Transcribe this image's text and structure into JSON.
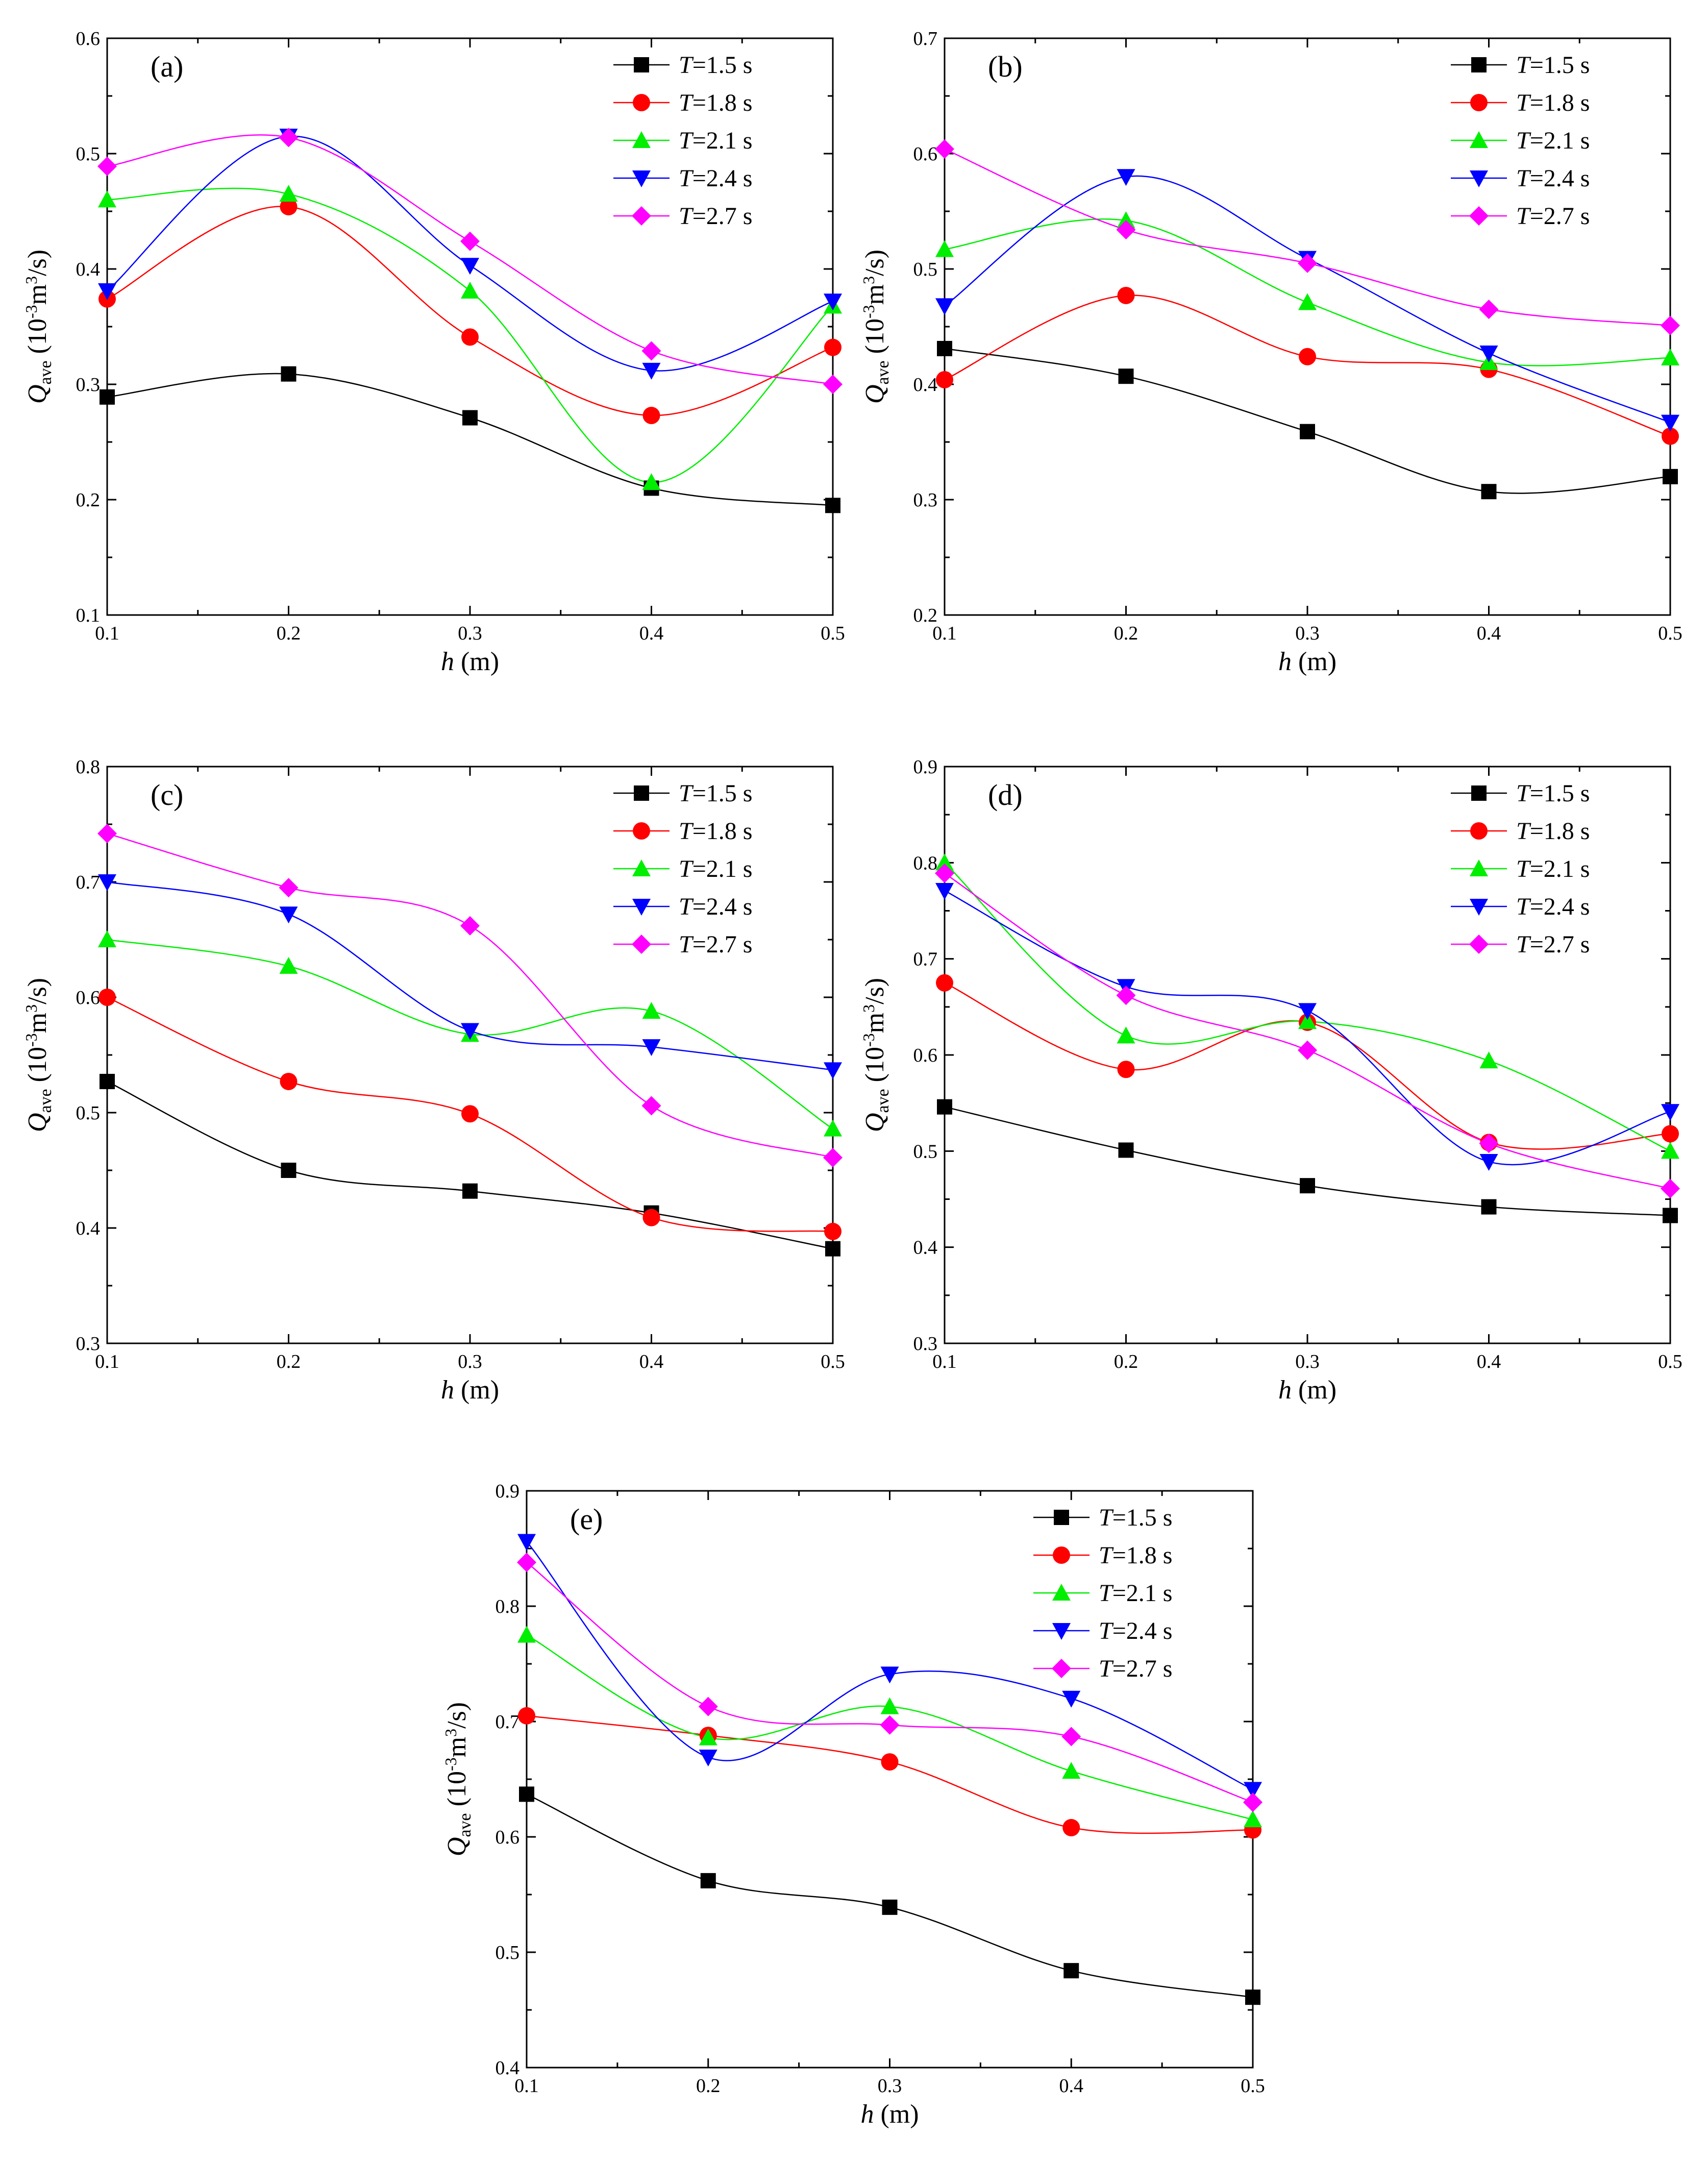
{
  "chart_data": [
    {
      "type": "line",
      "panel_label": "(a)",
      "xlabel": "h (m)",
      "xlabel_italic": "h",
      "xlabel_rest": " (m)",
      "ylabel_main": "Q",
      "ylabel_sub": "ave",
      "ylabel_rest": " (10",
      "ylabel_exp1": "-3",
      "ylabel_mid": "m",
      "ylabel_exp2": "3",
      "ylabel_end": "/s)",
      "x": [
        0.1,
        0.2,
        0.3,
        0.4,
        0.5
      ],
      "xticks": [
        "0.1",
        "0.2",
        "0.3",
        "0.4",
        "0.5"
      ],
      "ylim": [
        0.1,
        0.6
      ],
      "yticks": [
        "0.1",
        "0.2",
        "0.3",
        "0.4",
        "0.5",
        "0.6"
      ],
      "legend_position": "top-right",
      "series": [
        {
          "name": "T=1.5 s",
          "label_italic": "T",
          "label_rest": "=1.5 s",
          "color": "#000000",
          "marker": "square",
          "values": [
            0.289,
            0.309,
            0.271,
            0.21,
            0.195
          ]
        },
        {
          "name": "T=1.8 s",
          "label_italic": "T",
          "label_rest": "=1.8 s",
          "color": "#ff0000",
          "marker": "circle",
          "values": [
            0.374,
            0.454,
            0.341,
            0.273,
            0.332
          ]
        },
        {
          "name": "T=2.1 s",
          "label_italic": "T",
          "label_rest": "=2.1 s",
          "color": "#00ee00",
          "marker": "triangle-up",
          "values": [
            0.46,
            0.465,
            0.381,
            0.215,
            0.368
          ]
        },
        {
          "name": "T=2.4 s",
          "label_italic": "T",
          "label_rest": "=2.4 s",
          "color": "#0000ff",
          "marker": "triangle-down",
          "values": [
            0.381,
            0.515,
            0.403,
            0.312,
            0.372
          ]
        },
        {
          "name": "T=2.7 s",
          "label_italic": "T",
          "label_rest": "=2.7 s",
          "color": "#ff00ff",
          "marker": "diamond",
          "values": [
            0.489,
            0.514,
            0.424,
            0.329,
            0.3
          ]
        }
      ]
    },
    {
      "type": "line",
      "panel_label": "(b)",
      "xlabel": "h (m)",
      "xlabel_italic": "h",
      "xlabel_rest": " (m)",
      "ylabel_main": "Q",
      "ylabel_sub": "ave",
      "ylabel_rest": " (10",
      "ylabel_exp1": "-3",
      "ylabel_mid": "m",
      "ylabel_exp2": "3",
      "ylabel_end": "/s)",
      "x": [
        0.1,
        0.2,
        0.3,
        0.4,
        0.5
      ],
      "xticks": [
        "0.1",
        "0.2",
        "0.3",
        "0.4",
        "0.5"
      ],
      "ylim": [
        0.2,
        0.7
      ],
      "yticks": [
        "0.2",
        "0.3",
        "0.4",
        "0.5",
        "0.6",
        "0.7"
      ],
      "legend_position": "top-right",
      "series": [
        {
          "name": "T=1.5 s",
          "label_italic": "T",
          "label_rest": "=1.5 s",
          "color": "#000000",
          "marker": "square",
          "values": [
            0.431,
            0.407,
            0.359,
            0.307,
            0.32
          ]
        },
        {
          "name": "T=1.8 s",
          "label_italic": "T",
          "label_rest": "=1.8 s",
          "color": "#ff0000",
          "marker": "circle",
          "values": [
            0.404,
            0.477,
            0.424,
            0.413,
            0.355
          ]
        },
        {
          "name": "T=2.1 s",
          "label_italic": "T",
          "label_rest": "=2.1 s",
          "color": "#00ee00",
          "marker": "triangle-up",
          "values": [
            0.517,
            0.542,
            0.471,
            0.419,
            0.423
          ]
        },
        {
          "name": "T=2.4 s",
          "label_italic": "T",
          "label_rest": "=2.4 s",
          "color": "#0000ff",
          "marker": "triangle-down",
          "values": [
            0.468,
            0.58,
            0.509,
            0.427,
            0.367
          ]
        },
        {
          "name": "T=2.7 s",
          "label_italic": "T",
          "label_rest": "=2.7 s",
          "color": "#ff00ff",
          "marker": "diamond",
          "values": [
            0.604,
            0.534,
            0.505,
            0.465,
            0.451
          ]
        }
      ]
    },
    {
      "type": "line",
      "panel_label": "(c)",
      "xlabel": "h (m)",
      "xlabel_italic": "h",
      "xlabel_rest": " (m)",
      "ylabel_main": "Q",
      "ylabel_sub": "ave",
      "ylabel_rest": " (10",
      "ylabel_exp1": "-3",
      "ylabel_mid": "m",
      "ylabel_exp2": "3",
      "ylabel_end": "/s)",
      "x": [
        0.1,
        0.2,
        0.3,
        0.4,
        0.5
      ],
      "xticks": [
        "0.1",
        "0.2",
        "0.3",
        "0.4",
        "0.5"
      ],
      "ylim": [
        0.3,
        0.8
      ],
      "yticks": [
        "0.3",
        "0.4",
        "0.5",
        "0.6",
        "0.7",
        "0.8"
      ],
      "legend_position": "top-right",
      "series": [
        {
          "name": "T=1.5 s",
          "label_italic": "T",
          "label_rest": "=1.5 s",
          "color": "#000000",
          "marker": "square",
          "values": [
            0.527,
            0.45,
            0.432,
            0.413,
            0.382
          ]
        },
        {
          "name": "T=1.8 s",
          "label_italic": "T",
          "label_rest": "=1.8 s",
          "color": "#ff0000",
          "marker": "circle",
          "values": [
            0.6,
            0.527,
            0.499,
            0.409,
            0.397
          ]
        },
        {
          "name": "T=2.1 s",
          "label_italic": "T",
          "label_rest": "=2.1 s",
          "color": "#00ee00",
          "marker": "triangle-up",
          "values": [
            0.65,
            0.627,
            0.568,
            0.588,
            0.486
          ]
        },
        {
          "name": "T=2.4 s",
          "label_italic": "T",
          "label_rest": "=2.4 s",
          "color": "#0000ff",
          "marker": "triangle-down",
          "values": [
            0.7,
            0.672,
            0.571,
            0.557,
            0.537
          ]
        },
        {
          "name": "T=2.7 s",
          "label_italic": "T",
          "label_rest": "=2.7 s",
          "color": "#ff00ff",
          "marker": "diamond",
          "values": [
            0.742,
            0.695,
            0.662,
            0.506,
            0.461
          ]
        }
      ]
    },
    {
      "type": "line",
      "panel_label": "(d)",
      "xlabel": "h (m)",
      "xlabel_italic": "h",
      "xlabel_rest": " (m)",
      "ylabel_main": "Q",
      "ylabel_sub": "ave",
      "ylabel_rest": " (10",
      "ylabel_exp1": "-3",
      "ylabel_mid": "m",
      "ylabel_exp2": "3",
      "ylabel_end": "/s)",
      "x": [
        0.1,
        0.2,
        0.3,
        0.4,
        0.5
      ],
      "xticks": [
        "0.1",
        "0.2",
        "0.3",
        "0.4",
        "0.5"
      ],
      "ylim": [
        0.3,
        0.9
      ],
      "yticks": [
        "0.3",
        "0.4",
        "0.5",
        "0.6",
        "0.7",
        "0.8",
        "0.9"
      ],
      "legend_position": "top-right",
      "series": [
        {
          "name": "T=1.5 s",
          "label_italic": "T",
          "label_rest": "=1.5 s",
          "color": "#000000",
          "marker": "square",
          "values": [
            0.546,
            0.501,
            0.464,
            0.442,
            0.433
          ]
        },
        {
          "name": "T=1.8 s",
          "label_italic": "T",
          "label_rest": "=1.8 s",
          "color": "#ff0000",
          "marker": "circle",
          "values": [
            0.675,
            0.585,
            0.634,
            0.509,
            0.518
          ]
        },
        {
          "name": "T=2.1 s",
          "label_italic": "T",
          "label_rest": "=2.1 s",
          "color": "#00ee00",
          "marker": "triangle-up",
          "values": [
            0.8,
            0.62,
            0.635,
            0.594,
            0.5
          ]
        },
        {
          "name": "T=2.4 s",
          "label_italic": "T",
          "label_rest": "=2.4 s",
          "color": "#0000ff",
          "marker": "triangle-down",
          "values": [
            0.771,
            0.671,
            0.646,
            0.489,
            0.541
          ]
        },
        {
          "name": "T=2.7 s",
          "label_italic": "T",
          "label_rest": "=2.7 s",
          "color": "#ff00ff",
          "marker": "diamond",
          "values": [
            0.789,
            0.662,
            0.605,
            0.508,
            0.461
          ]
        }
      ]
    },
    {
      "type": "line",
      "panel_label": "(e)",
      "xlabel": "h (m)",
      "xlabel_italic": "h",
      "xlabel_rest": " (m)",
      "ylabel_main": "Q",
      "ylabel_sub": "ave",
      "ylabel_rest": " (10",
      "ylabel_exp1": "-3",
      "ylabel_mid": "m",
      "ylabel_exp2": "3",
      "ylabel_end": "/s)",
      "x": [
        0.1,
        0.2,
        0.3,
        0.4,
        0.5
      ],
      "xticks": [
        "0.1",
        "0.2",
        "0.3",
        "0.4",
        "0.5"
      ],
      "ylim": [
        0.4,
        0.9
      ],
      "yticks": [
        "0.4",
        "0.5",
        "0.6",
        "0.7",
        "0.8",
        "0.9"
      ],
      "legend_position": "top-right",
      "series": [
        {
          "name": "T=1.5 s",
          "label_italic": "T",
          "label_rest": "=1.5 s",
          "color": "#000000",
          "marker": "square",
          "values": [
            0.637,
            0.562,
            0.539,
            0.484,
            0.461
          ]
        },
        {
          "name": "T=1.8 s",
          "label_italic": "T",
          "label_rest": "=1.8 s",
          "color": "#ff0000",
          "marker": "circle",
          "values": [
            0.705,
            0.688,
            0.665,
            0.608,
            0.606
          ]
        },
        {
          "name": "T=2.1 s",
          "label_italic": "T",
          "label_rest": "=2.1 s",
          "color": "#00ee00",
          "marker": "triangle-up",
          "values": [
            0.775,
            0.686,
            0.713,
            0.657,
            0.615
          ]
        },
        {
          "name": "T=2.4 s",
          "label_italic": "T",
          "label_rest": "=2.4 s",
          "color": "#0000ff",
          "marker": "triangle-down",
          "values": [
            0.856,
            0.669,
            0.741,
            0.72,
            0.641
          ]
        },
        {
          "name": "T=2.7 s",
          "label_italic": "T",
          "label_rest": "=2.7 s",
          "color": "#ff00ff",
          "marker": "diamond",
          "values": [
            0.838,
            0.713,
            0.697,
            0.687,
            0.63
          ]
        }
      ]
    }
  ]
}
